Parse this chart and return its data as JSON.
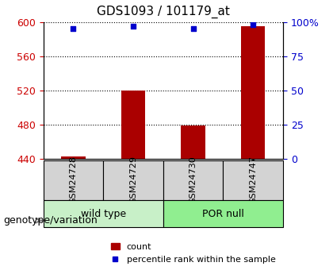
{
  "title": "GDS1093 / 101179_at",
  "samples": [
    "GSM24728",
    "GSM24729",
    "GSM24730",
    "GSM24747"
  ],
  "counts": [
    443,
    520,
    479,
    595
  ],
  "percentiles": [
    95,
    97,
    95,
    98
  ],
  "ylim_left": [
    440,
    600
  ],
  "ylim_right": [
    0,
    100
  ],
  "yticks_left": [
    440,
    480,
    520,
    560,
    600
  ],
  "yticks_right": [
    0,
    25,
    50,
    75,
    100
  ],
  "ytick_labels_right": [
    "0",
    "25",
    "50",
    "75",
    "100%"
  ],
  "groups": [
    {
      "label": "wild type",
      "indices": [
        0,
        1
      ],
      "color": "#c8f0c8"
    },
    {
      "label": "POR null",
      "indices": [
        2,
        3
      ],
      "color": "#90ee90"
    }
  ],
  "bar_color": "#aa0000",
  "dot_color": "#0000cc",
  "bar_width": 0.4,
  "xlabel_color": "#cc0000",
  "right_axis_color": "#0000cc",
  "grid_color": "#000000",
  "title_fontsize": 11,
  "tick_fontsize": 9,
  "label_fontsize": 9,
  "group_label_fontsize": 9,
  "legend_fontsize": 8,
  "sample_box_color": "#d3d3d3",
  "genotype_label": "genotype/variation"
}
